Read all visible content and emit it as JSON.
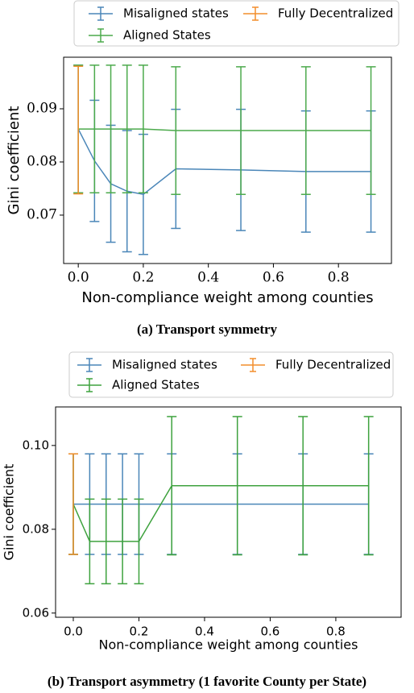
{
  "chart_data": [
    {
      "type": "line",
      "caption": "(a) Transport symmetry",
      "xlabel": "Non-compliance weight among counties",
      "ylabel": "Gini coefficient",
      "xlim": [
        -0.045,
        0.963
      ],
      "ylim": [
        0.0609,
        0.0997
      ],
      "xticks": [
        {
          "value": 0,
          "label": "0.0"
        },
        0.2,
        0.4,
        0.6,
        0.8
      ],
      "yticks": [
        0.07,
        0.08,
        0.09
      ],
      "legend": "top",
      "series": [
        {
          "name": "Misaligned states",
          "color": "#4a86b8",
          "x": [
            0,
            0.05,
            0.1,
            0.15,
            0.2,
            0.3,
            0.5,
            0.7,
            0.9
          ],
          "values": [
            0.0862,
            0.0802,
            0.0759,
            0.0745,
            0.0739,
            0.0787,
            0.0785,
            0.0782,
            0.0782
          ],
          "errors": [
            0.012,
            0.0114,
            0.011,
            0.0114,
            0.0113,
            0.0112,
            0.0114,
            0.0114,
            0.0114
          ]
        },
        {
          "name": "Aligned States",
          "color": "#4caa4c",
          "x": [
            0,
            0.05,
            0.1,
            0.15,
            0.2,
            0.3,
            0.5,
            0.7,
            0.9
          ],
          "values": [
            0.0862,
            0.0862,
            0.0862,
            0.0862,
            0.0862,
            0.0859,
            0.0859,
            0.0859,
            0.0859
          ],
          "errors": [
            0.012,
            0.012,
            0.012,
            0.012,
            0.012,
            0.012,
            0.012,
            0.012,
            0.012
          ]
        },
        {
          "name": "Fully Decentralized",
          "color": "#f28e2b",
          "x": [
            0
          ],
          "values": [
            0.086
          ],
          "errors": [
            0.012
          ]
        }
      ]
    },
    {
      "type": "line",
      "caption": "(b) Transport asymmetry (1 favorite County per State)",
      "xlabel": "Non-compliance weight among counties",
      "ylabel": "Gini coefficient",
      "xlim": [
        -0.054,
        0.999
      ],
      "ylim": [
        0.059,
        0.1092
      ],
      "xticks": [
        {
          "value": 0,
          "label": "0.0"
        },
        0.2,
        0.4,
        0.6,
        0.8
      ],
      "yticks": [
        0.06,
        0.08,
        {
          "value": 0.1,
          "label": "0.10"
        }
      ],
      "legend": "top",
      "series": [
        {
          "name": "Misaligned states",
          "color": "#4a86b8",
          "x": [
            0,
            0.05,
            0.1,
            0.15,
            0.2,
            0.3,
            0.5,
            0.7,
            0.9
          ],
          "values": [
            0.086,
            0.086,
            0.086,
            0.086,
            0.086,
            0.086,
            0.086,
            0.086,
            0.086
          ],
          "errors": [
            0.012,
            0.012,
            0.012,
            0.012,
            0.012,
            0.012,
            0.012,
            0.012,
            0.012
          ]
        },
        {
          "name": "Aligned States",
          "color": "#3ea23e",
          "x": [
            0,
            0.05,
            0.1,
            0.15,
            0.2,
            0.3,
            0.5,
            0.7,
            0.9
          ],
          "values": [
            0.086,
            0.0771,
            0.0771,
            0.0771,
            0.0771,
            0.0904,
            0.0904,
            0.0904,
            0.0904
          ],
          "errors": [
            0.012,
            0.0101,
            0.0101,
            0.0101,
            0.0101,
            0.0165,
            0.0165,
            0.0165,
            0.0165
          ]
        },
        {
          "name": "Fully Decentralized",
          "color": "#f28e2b",
          "x": [
            0
          ],
          "values": [
            0.086
          ],
          "errors": [
            0.012
          ]
        }
      ]
    }
  ]
}
